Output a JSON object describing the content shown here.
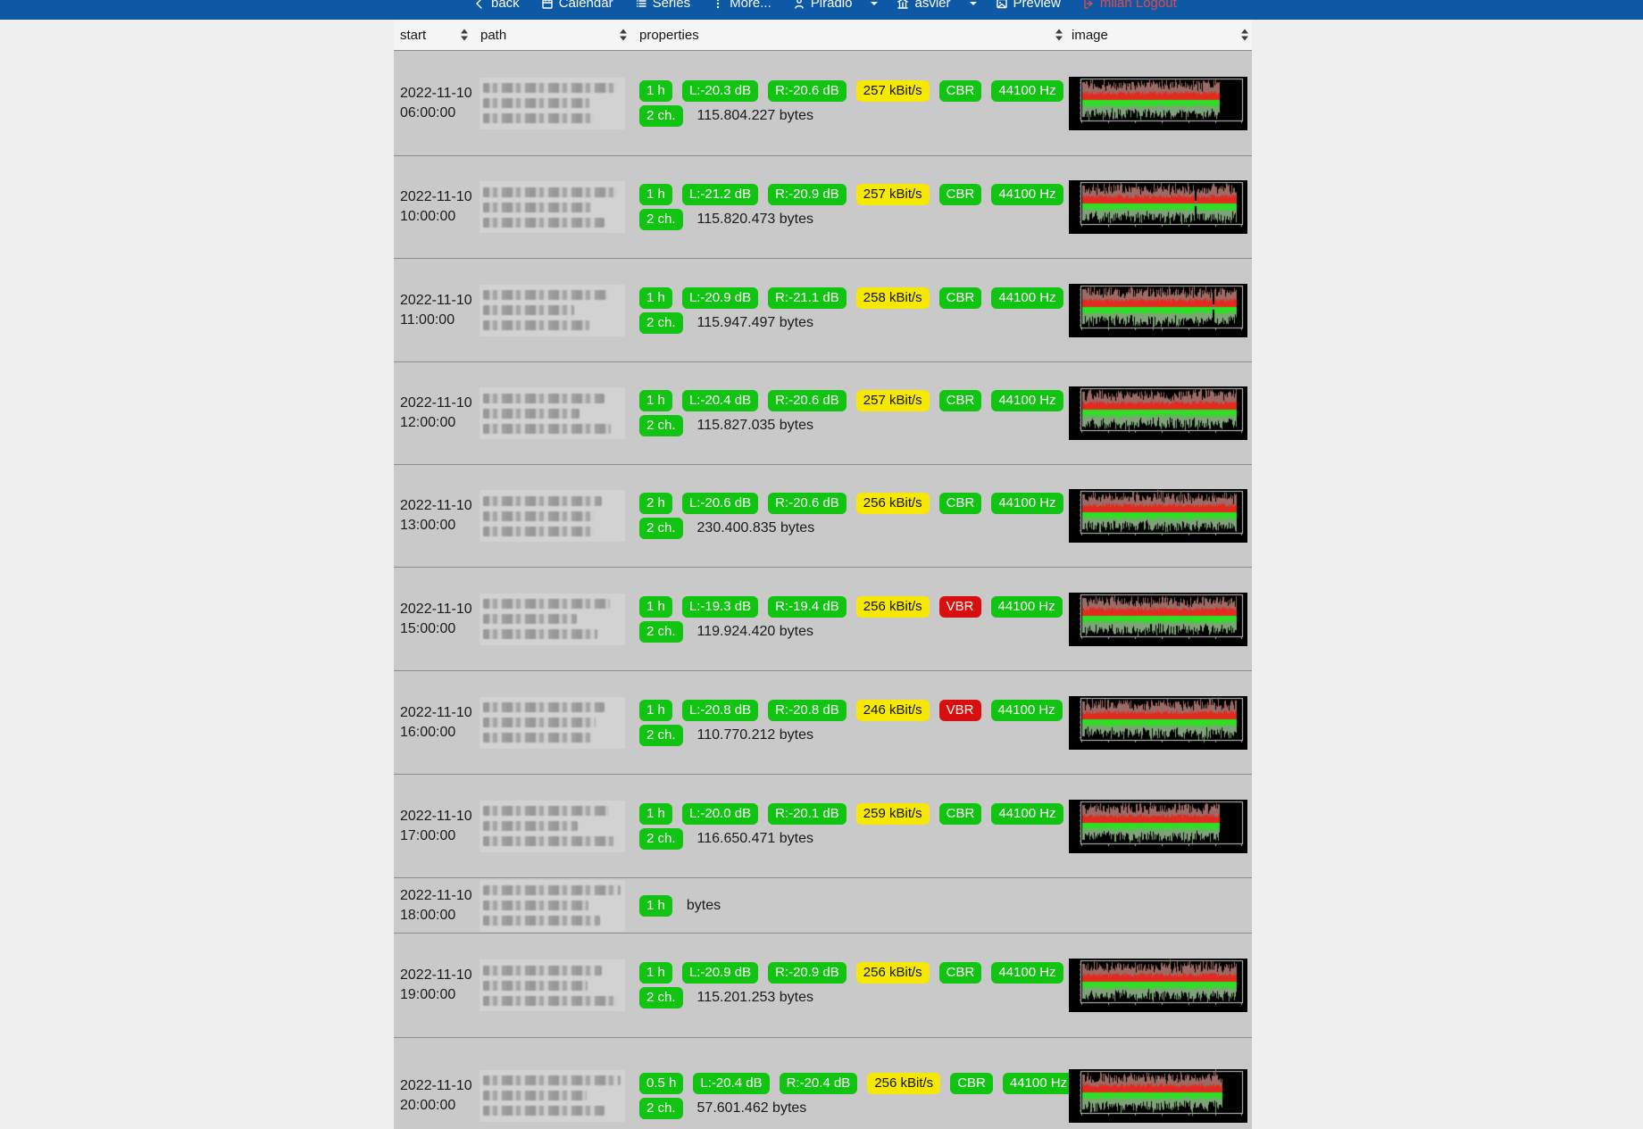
{
  "nav": {
    "items": [
      {
        "label": "back",
        "icon": "back-arrow-icon",
        "color": "#ffffff"
      },
      {
        "label": "Calendar",
        "icon": "calendar-icon",
        "color": "#ffffff"
      },
      {
        "label": "Series",
        "icon": "list-icon",
        "color": "#ffffff"
      },
      {
        "label": "More...",
        "icon": "kebab-menu-icon",
        "color": "#ffffff"
      },
      {
        "label": "Piradio",
        "icon": "person-icon",
        "color": "#ffffff"
      },
      {
        "label": "",
        "icon": "caret-down-icon",
        "color": "#ffffff"
      },
      {
        "label": "asvler",
        "icon": "building-icon",
        "color": "#ffffff"
      },
      {
        "label": "",
        "icon": "caret-down-icon",
        "color": "#ffffff"
      },
      {
        "label": "Preview",
        "icon": "image-icon",
        "color": "#ffffff"
      },
      {
        "label": "milan Logout",
        "icon": "logout-icon",
        "color": "#e14b4b"
      }
    ]
  },
  "table": {
    "columns": [
      {
        "label": "start",
        "sortable": true
      },
      {
        "label": "path",
        "sortable": true
      },
      {
        "label": "properties",
        "sortable": true
      },
      {
        "label": "image",
        "sortable": true
      }
    ],
    "rows": [
      {
        "start_date": "2022-11-10",
        "start_time": "06:00:00",
        "path_redacted": true,
        "duration": "1 h",
        "left_db": "L:-20.3 dB",
        "right_db": "R:-20.6 dB",
        "bitrate": "257 kBit/s",
        "mode": "CBR",
        "sample_rate": "44100 Hz",
        "channels": "2 ch.",
        "size": "115.804.227 bytes",
        "image": {
          "present": true,
          "fill": 0.86,
          "gap": null
        }
      },
      {
        "start_date": "2022-11-10",
        "start_time": "10:00:00",
        "path_redacted": true,
        "duration": "1 h",
        "left_db": "L:-21.2 dB",
        "right_db": "R:-20.9 dB",
        "bitrate": "257 kBit/s",
        "mode": "CBR",
        "sample_rate": "44100 Hz",
        "channels": "2 ch.",
        "size": "115.820.473 bytes",
        "image": {
          "present": true,
          "fill": 0.97,
          "gap": 0.71
        }
      },
      {
        "start_date": "2022-11-10",
        "start_time": "11:00:00",
        "path_redacted": true,
        "duration": "1 h",
        "left_db": "L:-20.9 dB",
        "right_db": "R:-21.1 dB",
        "bitrate": "258 kBit/s",
        "mode": "CBR",
        "sample_rate": "44100 Hz",
        "channels": "2 ch.",
        "size": "115.947.497 bytes",
        "image": {
          "present": true,
          "fill": 0.97,
          "gap": 0.82
        }
      },
      {
        "start_date": "2022-11-10",
        "start_time": "12:00:00",
        "path_redacted": true,
        "duration": "1 h",
        "left_db": "L:-20.4 dB",
        "right_db": "R:-20.6 dB",
        "bitrate": "257 kBit/s",
        "mode": "CBR",
        "sample_rate": "44100 Hz",
        "channels": "2 ch.",
        "size": "115.827.035 bytes",
        "image": {
          "present": true,
          "fill": 0.97,
          "gap": null
        }
      },
      {
        "start_date": "2022-11-10",
        "start_time": "13:00:00",
        "path_redacted": true,
        "duration": "2 h",
        "left_db": "L:-20.6 dB",
        "right_db": "R:-20.6 dB",
        "bitrate": "256 kBit/s",
        "mode": "CBR",
        "sample_rate": "44100 Hz",
        "channels": "2 ch.",
        "size": "230.400.835 bytes",
        "image": {
          "present": true,
          "fill": 0.97,
          "gap": null
        }
      },
      {
        "start_date": "2022-11-10",
        "start_time": "15:00:00",
        "path_redacted": true,
        "duration": "1 h",
        "left_db": "L:-19.3 dB",
        "right_db": "R:-19.4 dB",
        "bitrate": "256 kBit/s",
        "mode": "VBR",
        "sample_rate": "44100 Hz",
        "channels": "2 ch.",
        "size": "119.924.420 bytes",
        "image": {
          "present": true,
          "fill": 0.97,
          "gap": null
        }
      },
      {
        "start_date": "2022-11-10",
        "start_time": "16:00:00",
        "path_redacted": true,
        "duration": "1 h",
        "left_db": "L:-20.8 dB",
        "right_db": "R:-20.8 dB",
        "bitrate": "246 kBit/s",
        "mode": "VBR",
        "sample_rate": "44100 Hz",
        "channels": "2 ch.",
        "size": "110.770.212 bytes",
        "image": {
          "present": true,
          "fill": 0.97,
          "gap": null
        }
      },
      {
        "start_date": "2022-11-10",
        "start_time": "17:00:00",
        "path_redacted": true,
        "duration": "1 h",
        "left_db": "L:-20.0 dB",
        "right_db": "R:-20.1 dB",
        "bitrate": "259 kBit/s",
        "mode": "CBR",
        "sample_rate": "44100 Hz",
        "channels": "2 ch.",
        "size": "116.650.471 bytes",
        "image": {
          "present": true,
          "fill": 0.86,
          "gap": null
        }
      },
      {
        "start_date": "2022-11-10",
        "start_time": "18:00:00",
        "path_redacted": true,
        "duration": "1 h",
        "left_db": "",
        "right_db": "",
        "bitrate": "",
        "mode": "",
        "sample_rate": "",
        "channels": "",
        "size": "bytes",
        "image": {
          "present": false,
          "fill": 0,
          "gap": null
        }
      },
      {
        "start_date": "2022-11-10",
        "start_time": "19:00:00",
        "path_redacted": true,
        "duration": "1 h",
        "left_db": "L:-20.9 dB",
        "right_db": "R:-20.9 dB",
        "bitrate": "256 kBit/s",
        "mode": "CBR",
        "sample_rate": "44100 Hz",
        "channels": "2 ch.",
        "size": "115.201.253 bytes",
        "image": {
          "present": true,
          "fill": 0.97,
          "gap": null
        }
      },
      {
        "start_date": "2022-11-10",
        "start_time": "20:00:00",
        "path_redacted": true,
        "duration": "0.5 h",
        "left_db": "L:-20.4 dB",
        "right_db": "R:-20.4 dB",
        "bitrate": "256 kBit/s",
        "mode": "CBR",
        "sample_rate": "44100 Hz",
        "channels": "2 ch.",
        "size": "57.601.462 bytes",
        "image": {
          "present": true,
          "fill": 0.88,
          "gap": null
        }
      }
    ]
  },
  "colors": {
    "nav_bg": "#0e59a6",
    "nav_text": "#ffffff",
    "logout_text": "#e14b4b",
    "page_bg": "#efefef",
    "header_bg": "#f5f5f5",
    "row_bg": "#c9c9c9",
    "row_border": "#8d8d8d",
    "blur_bg": "#d2d2d2",
    "badge_green": "#12c412",
    "badge_yellow": "#f6e800",
    "badge_red": "#d90f0f",
    "thumb_bg": "#000000",
    "thumb_red_bright": "#e22b20",
    "thumb_red_muted": "#9c6b66",
    "thumb_green_bright": "#2ddf25",
    "thumb_green_muted": "#7fa379"
  }
}
